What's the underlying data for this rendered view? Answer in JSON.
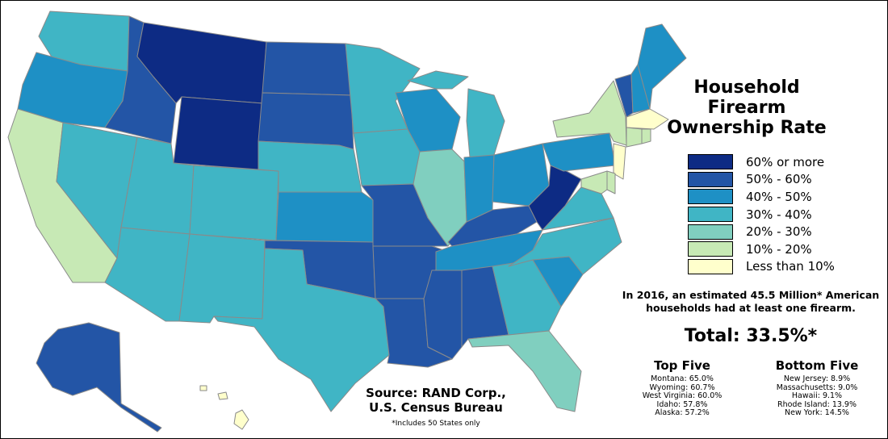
{
  "title": "Household Firearm Ownership Rate",
  "legend": [
    {
      "label": "60% or more",
      "color": "#0d2b84"
    },
    {
      "label": "50% - 60%",
      "color": "#2355a6"
    },
    {
      "label": "40% - 50%",
      "color": "#1e90c5"
    },
    {
      "label": "30% - 40%",
      "color": "#40b5c5"
    },
    {
      "label": "20% - 30%",
      "color": "#80cfbf"
    },
    {
      "label": "10% - 20%",
      "color": "#c7e9b5"
    },
    {
      "label": "Less than 10%",
      "color": "#ffffcc"
    }
  ],
  "note": "In 2016, an estimated 45.5 Million* American households had at least one firearm.",
  "total": "Total: 33.5%*",
  "top_five": {
    "heading": "Top Five",
    "items": [
      "Montana: 65.0%",
      "Wyoming: 60.7%",
      "West Virginia: 60.0%",
      "Idaho: 57.8%",
      "Alaska: 57.2%"
    ]
  },
  "bottom_five": {
    "heading": "Bottom Five",
    "items": [
      "New Jersey: 8.9%",
      "Massachusetts: 9.0%",
      "Hawaii: 9.1%",
      "Rhode Island: 13.9%",
      "New York: 14.5%"
    ]
  },
  "source": "Source: RAND Corp., U.S. Census Bureau",
  "footnote": "*Includes 50 States only",
  "states": {
    "WA": "30% - 40%",
    "OR": "40% - 50%",
    "CA": "10% - 20%",
    "ID": "50% - 60%",
    "NV": "30% - 40%",
    "MT": "60% or more",
    "WY": "60% or more",
    "UT": "30% - 40%",
    "AZ": "30% - 40%",
    "CO": "30% - 40%",
    "NM": "30% - 40%",
    "ND": "50% - 60%",
    "SD": "50% - 60%",
    "NE": "30% - 40%",
    "KS": "40% - 50%",
    "OK": "50% - 60%",
    "TX": "30% - 40%",
    "MN": "30% - 40%",
    "IA": "30% - 40%",
    "MO": "50% - 60%",
    "AR": "50% - 60%",
    "LA": "50% - 60%",
    "WI": "40% - 50%",
    "IL": "20% - 30%",
    "MI": "30% - 40%",
    "IN": "40% - 50%",
    "OH": "40% - 50%",
    "KY": "50% - 60%",
    "TN": "40% - 50%",
    "MS": "50% - 60%",
    "AL": "50% - 60%",
    "GA": "30% - 40%",
    "FL": "20% - 30%",
    "SC": "40% - 50%",
    "NC": "30% - 40%",
    "VA": "30% - 40%",
    "WV": "60% or more",
    "PA": "40% - 50%",
    "NY": "10% - 20%",
    "VT": "50% - 60%",
    "NH": "40% - 50%",
    "ME": "40% - 50%",
    "MA": "Less than 10%",
    "CT": "10% - 20%",
    "RI": "10% - 20%",
    "NJ": "Less than 10%",
    "DE": "10% - 20%",
    "MD": "10% - 20%",
    "AK": "50% - 60%",
    "HI": "Less than 10%"
  }
}
